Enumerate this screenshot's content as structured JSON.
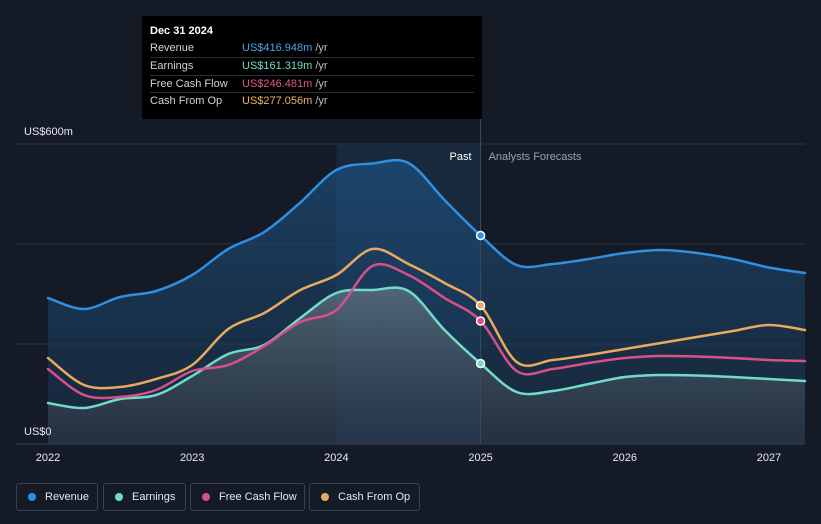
{
  "tooltip": {
    "date": "Dec 31 2024",
    "rows": [
      {
        "label": "Revenue",
        "value": "US$416.948m",
        "unit": "/yr",
        "color": "#4aa3e8"
      },
      {
        "label": "Earnings",
        "value": "US$161.319m",
        "unit": "/yr",
        "color": "#6fdcc9"
      },
      {
        "label": "Free Cash Flow",
        "value": "US$246.481m",
        "unit": "/yr",
        "color": "#e0568f"
      },
      {
        "label": "Cash From Op",
        "value": "US$277.056m",
        "unit": "/yr",
        "color": "#f0b465"
      }
    ]
  },
  "legend": [
    {
      "label": "Revenue",
      "color": "#2f8fe0"
    },
    {
      "label": "Earnings",
      "color": "#6fdcc9"
    },
    {
      "label": "Free Cash Flow",
      "color": "#d8508a"
    },
    {
      "label": "Cash From Op",
      "color": "#e8a961"
    }
  ],
  "chart_data": {
    "type": "line",
    "ylim": [
      0,
      600
    ],
    "xlim": [
      2022.0,
      2027.25
    ],
    "y_tick_labels": [
      {
        "value": 600,
        "label": "US$600m"
      },
      {
        "value": 0,
        "label": "US$0"
      }
    ],
    "x_ticks": [
      {
        "value": 2022,
        "label": "2022"
      },
      {
        "value": 2023,
        "label": "2023"
      },
      {
        "value": 2024,
        "label": "2024"
      },
      {
        "value": 2025,
        "label": "2025"
      },
      {
        "value": 2026,
        "label": "2026"
      },
      {
        "value": 2027,
        "label": "2027"
      }
    ],
    "divider": {
      "x": 2025.0,
      "past_label": "Past",
      "forecast_label": "Analysts Forecasts"
    },
    "highlight": {
      "from": 2024.0,
      "to": 2025.0
    },
    "series": [
      {
        "name": "Revenue",
        "color": "#2f8fe0",
        "fill": true,
        "x": [
          2022.0,
          2022.25,
          2022.5,
          2022.75,
          2023.0,
          2023.25,
          2023.5,
          2023.75,
          2024.0,
          2024.25,
          2024.5,
          2024.75,
          2025.0,
          2025.25,
          2025.5,
          2025.75,
          2026.0,
          2026.25,
          2026.5,
          2026.75,
          2027.0,
          2027.25
        ],
        "y": [
          292,
          270,
          294,
          306,
          338,
          390,
          424,
          483,
          548,
          561,
          562,
          488,
          417,
          358,
          360,
          370,
          382,
          388,
          382,
          370,
          353,
          342
        ]
      },
      {
        "name": "Earnings",
        "color": "#6fdcc9",
        "fill": true,
        "x": [
          2022.0,
          2022.25,
          2022.5,
          2022.75,
          2023.0,
          2023.25,
          2023.5,
          2023.75,
          2024.0,
          2024.25,
          2024.5,
          2024.75,
          2025.0,
          2025.25,
          2025.5,
          2025.75,
          2026.0,
          2026.25,
          2026.5,
          2026.75,
          2027.0,
          2027.25
        ],
        "y": [
          82,
          72,
          90,
          98,
          136,
          180,
          198,
          252,
          302,
          308,
          306,
          228,
          161,
          104,
          106,
          120,
          134,
          138,
          137,
          134,
          130,
          126
        ]
      },
      {
        "name": "Free Cash Flow",
        "color": "#d8508a",
        "fill": false,
        "x": [
          2022.0,
          2022.25,
          2022.5,
          2022.75,
          2023.0,
          2023.25,
          2023.5,
          2023.75,
          2024.0,
          2024.25,
          2024.5,
          2024.75,
          2025.0,
          2025.25,
          2025.5,
          2025.75,
          2026.0,
          2026.25,
          2026.5,
          2026.75,
          2027.0,
          2027.25
        ],
        "y": [
          150,
          98,
          94,
          108,
          146,
          158,
          196,
          244,
          268,
          356,
          338,
          292,
          246,
          146,
          150,
          162,
          172,
          176,
          175,
          172,
          168,
          166
        ]
      },
      {
        "name": "Cash From Op",
        "color": "#e8a961",
        "fill": false,
        "x": [
          2022.0,
          2022.25,
          2022.5,
          2022.75,
          2023.0,
          2023.25,
          2023.5,
          2023.75,
          2024.0,
          2024.25,
          2024.5,
          2024.75,
          2025.0,
          2025.25,
          2025.5,
          2025.75,
          2026.0,
          2026.25,
          2026.5,
          2026.75,
          2027.0,
          2027.25
        ],
        "y": [
          172,
          118,
          114,
          130,
          158,
          230,
          262,
          308,
          338,
          390,
          360,
          322,
          277,
          164,
          168,
          178,
          190,
          202,
          214,
          226,
          238,
          228
        ]
      }
    ],
    "markers_at_x": 2025.0
  }
}
